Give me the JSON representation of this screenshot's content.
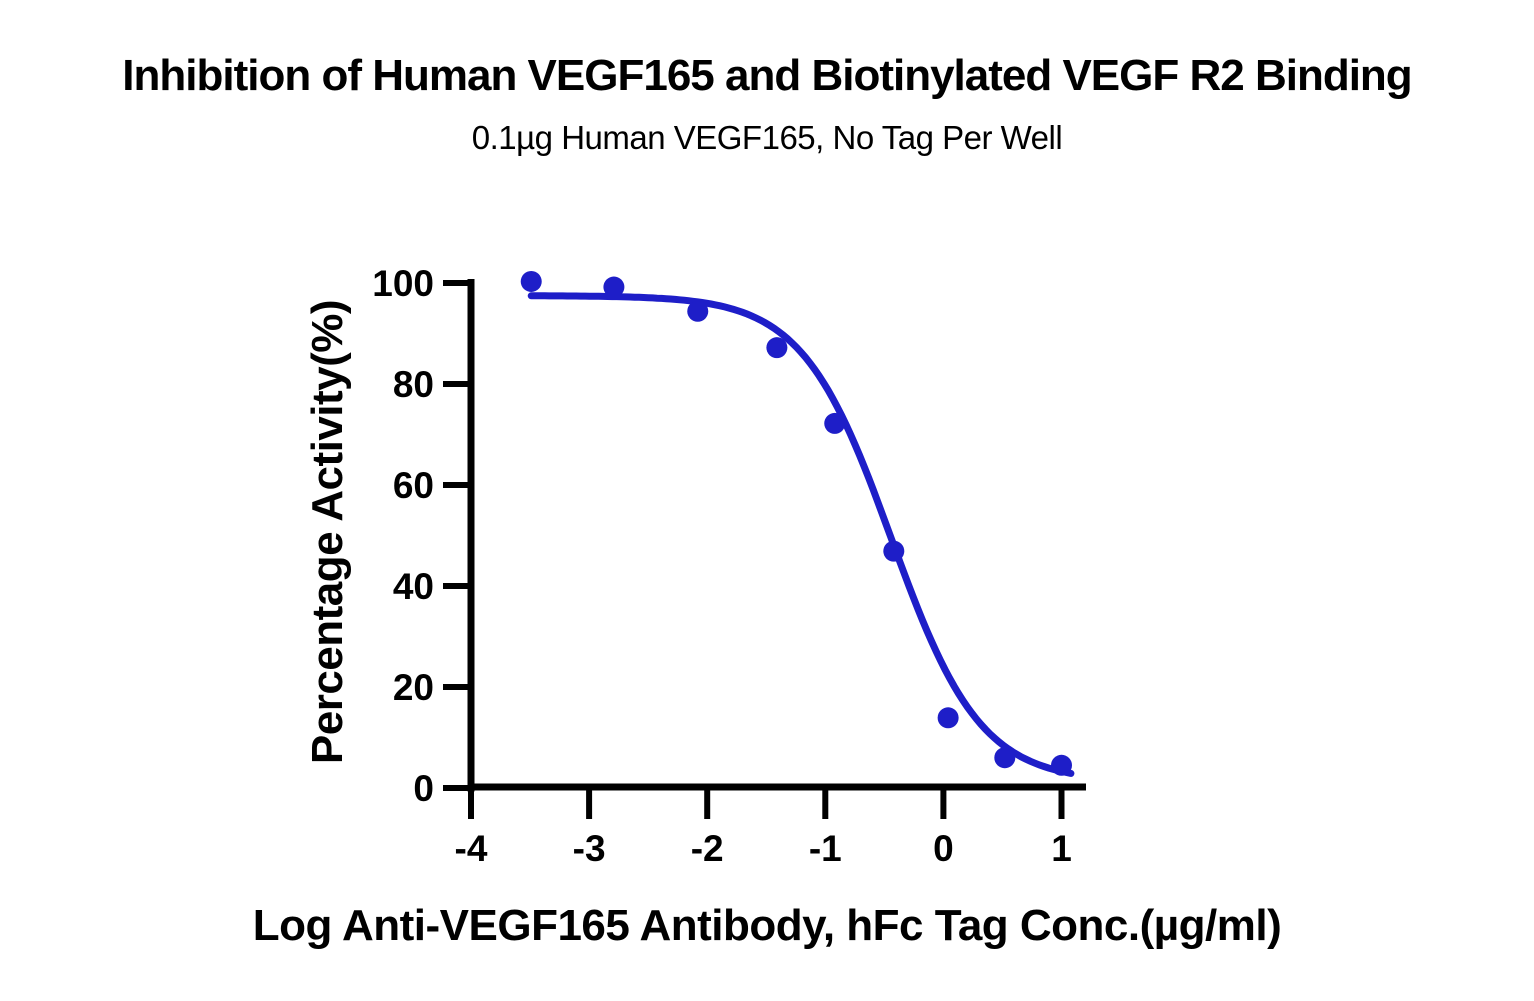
{
  "chart_data": {
    "type": "scatter",
    "title": "Inhibition of Human VEGF165 and Biotinylated VEGF R2 Binding",
    "subtitle": "0.1µg Human VEGF165, No Tag Per Well",
    "xlabel": "Log Anti-VEGF165 Antibody, hFc Tag Conc.(µg/ml)",
    "ylabel": "Percentage Activity(%)",
    "x_ticks": [
      -4,
      -3,
      -2,
      -1,
      0,
      1
    ],
    "y_ticks": [
      0,
      20,
      40,
      60,
      80,
      100
    ],
    "xlim": [
      -4,
      1.1
    ],
    "ylim": [
      0,
      100
    ],
    "grid": false,
    "legend": null,
    "axis_color": "#000000",
    "series": [
      {
        "name": "Anti-VEGF165 Antibody, hFc Tag",
        "color": "#1e1ec8",
        "points": [
          {
            "x": -3.49,
            "y": 100.3
          },
          {
            "x": -2.79,
            "y": 99.2
          },
          {
            "x": -2.08,
            "y": 94.4
          },
          {
            "x": -1.41,
            "y": 87.2
          },
          {
            "x": -0.92,
            "y": 72.2
          },
          {
            "x": -0.42,
            "y": 46.9
          },
          {
            "x": 0.04,
            "y": 13.9
          },
          {
            "x": 0.52,
            "y": 6.0
          },
          {
            "x": 1.0,
            "y": 4.5
          }
        ],
        "fit_curve": {
          "model": "four_parameter_logistic",
          "top": 97.5,
          "bottom": 1.2,
          "log_ic50": -0.44,
          "hill_slope": 1.15,
          "x_start": -3.49,
          "x_end": 1.08
        }
      }
    ]
  }
}
